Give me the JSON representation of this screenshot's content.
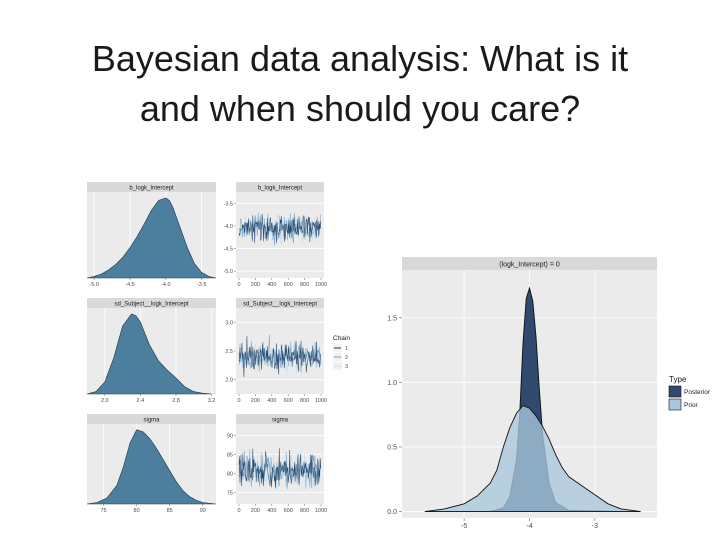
{
  "slide": {
    "title_line1": "Bayesian data analysis: What is it",
    "title_line2": "and when should you care?"
  },
  "colors": {
    "panel_bg": "#ebebeb",
    "strip_bg": "#d9d9d9",
    "density_fill": "#4c7f9e",
    "posterior": "#2f4a6e",
    "prior": "#a9c6dc"
  },
  "chart_data": [
    {
      "type": "area",
      "title": "b_logk_Intercept",
      "xticks": [
        -5.0,
        -4.5,
        -4.0,
        -3.5
      ],
      "xtick_labels": [
        "-5.0",
        "-4.5",
        "-4.0",
        "-3.5"
      ],
      "xlim": [
        -5.1,
        -3.3
      ],
      "x": [
        -5.1,
        -5.0,
        -4.9,
        -4.8,
        -4.7,
        -4.6,
        -4.5,
        -4.4,
        -4.3,
        -4.2,
        -4.1,
        -4.0,
        -3.95,
        -3.9,
        -3.8,
        -3.7,
        -3.6,
        -3.5,
        -3.4,
        -3.3
      ],
      "y": [
        0.0,
        0.02,
        0.05,
        0.1,
        0.17,
        0.26,
        0.38,
        0.52,
        0.68,
        0.85,
        0.97,
        1.0,
        0.97,
        0.88,
        0.63,
        0.38,
        0.18,
        0.07,
        0.02,
        0.0
      ]
    },
    {
      "type": "line",
      "title": "b_logk_Intercept",
      "xticks": [
        0,
        200,
        400,
        600,
        800,
        1000
      ],
      "xtick_labels": [
        "0",
        "200",
        "400",
        "600",
        "800",
        "1000"
      ],
      "yticks": [
        -3.5,
        -4.0,
        -4.5,
        -5.0
      ],
      "ytick_labels": [
        "-3.5",
        "-4.0",
        "-4.5",
        "-5.0"
      ],
      "ylim": [
        -5.15,
        -3.25
      ],
      "center": -4.05,
      "spread": 0.55
    },
    {
      "type": "area",
      "title": "sd_Subject__logk_Intercept",
      "xticks": [
        2.0,
        2.4,
        2.8,
        3.2
      ],
      "xtick_labels": [
        "2.0",
        "2.4",
        "2.8",
        "3.2"
      ],
      "xlim": [
        1.8,
        3.25
      ],
      "x": [
        1.8,
        1.9,
        2.0,
        2.1,
        2.2,
        2.3,
        2.35,
        2.4,
        2.5,
        2.6,
        2.7,
        2.8,
        2.9,
        3.0,
        3.1,
        3.2
      ],
      "y": [
        0.0,
        0.03,
        0.15,
        0.45,
        0.85,
        1.0,
        0.98,
        0.9,
        0.62,
        0.42,
        0.3,
        0.2,
        0.09,
        0.03,
        0.01,
        0.0
      ]
    },
    {
      "type": "line",
      "title": "sd_Subject__logk_Intercept",
      "xticks": [
        0,
        200,
        400,
        600,
        800,
        1000
      ],
      "xtick_labels": [
        "0",
        "200",
        "400",
        "600",
        "800",
        "1000"
      ],
      "yticks": [
        3.0,
        2.5,
        2.0
      ],
      "ytick_labels": [
        "3.0",
        "2.5",
        "2.0"
      ],
      "ylim": [
        1.75,
        3.25
      ],
      "center": 2.4,
      "spread": 0.5
    },
    {
      "type": "area",
      "title": "sigma",
      "xticks": [
        75,
        80,
        85,
        90
      ],
      "xtick_labels": [
        "75",
        "80",
        "85",
        "90"
      ],
      "xlim": [
        72.5,
        92
      ],
      "x": [
        72.5,
        74,
        75.5,
        77,
        78,
        79,
        80,
        81,
        82,
        83,
        84,
        85,
        86,
        87,
        88,
        89,
        90,
        91,
        92
      ],
      "y": [
        0.0,
        0.02,
        0.08,
        0.25,
        0.5,
        0.82,
        1.0,
        0.97,
        0.88,
        0.75,
        0.6,
        0.45,
        0.3,
        0.18,
        0.1,
        0.05,
        0.02,
        0.01,
        0.0
      ]
    },
    {
      "type": "line",
      "title": "sigma",
      "xticks": [
        0,
        200,
        400,
        600,
        800,
        1000
      ],
      "xtick_labels": [
        "0",
        "200",
        "400",
        "600",
        "800",
        "1000"
      ],
      "yticks": [
        90,
        85,
        80,
        75
      ],
      "ytick_labels": [
        "90",
        "85",
        "80",
        "75"
      ],
      "ylim": [
        72,
        93
      ],
      "center": 81,
      "spread": 9
    },
    {
      "type": "area",
      "title": "(logk_Intercept) = 0",
      "xticks": [
        -5,
        -4,
        -3
      ],
      "xtick_labels": [
        "-5",
        "-4",
        "-3"
      ],
      "yticks": [
        0.0,
        0.5,
        1.0,
        1.5
      ],
      "ytick_labels": [
        "0.0",
        "0.5",
        "1.0",
        "1.5"
      ],
      "xlim": [
        -5.95,
        -2.05
      ],
      "ylim": [
        -0.05,
        1.87
      ],
      "legend": {
        "title": "Type",
        "position": "right"
      },
      "series": [
        {
          "name": "Posterior",
          "x": [
            -5.6,
            -4.6,
            -4.4,
            -4.3,
            -4.2,
            -4.15,
            -4.1,
            -4.05,
            -4.0,
            -3.95,
            -3.9,
            -3.85,
            -3.8,
            -3.7,
            -3.6,
            -3.4,
            -2.5
          ],
          "y": [
            0.0,
            0.0,
            0.03,
            0.12,
            0.4,
            0.75,
            1.3,
            1.65,
            1.73,
            1.63,
            1.35,
            0.95,
            0.6,
            0.22,
            0.07,
            0.01,
            0.0
          ]
        },
        {
          "name": "Prior",
          "x": [
            -5.6,
            -5.3,
            -5.0,
            -4.8,
            -4.6,
            -4.5,
            -4.4,
            -4.3,
            -4.2,
            -4.1,
            -4.0,
            -3.9,
            -3.8,
            -3.7,
            -3.6,
            -3.5,
            -3.4,
            -3.2,
            -3.0,
            -2.8,
            -2.6,
            -2.3
          ],
          "y": [
            0.0,
            0.02,
            0.06,
            0.12,
            0.22,
            0.32,
            0.5,
            0.65,
            0.76,
            0.82,
            0.8,
            0.74,
            0.66,
            0.56,
            0.44,
            0.34,
            0.27,
            0.2,
            0.13,
            0.06,
            0.02,
            0.0
          ]
        }
      ]
    }
  ],
  "chain_legend": {
    "title": "Chain",
    "items": [
      "1",
      "2",
      "3"
    ],
    "colors": [
      "#173a5e",
      "#6f9fc2",
      "#c6e0f0"
    ]
  },
  "prior_legend_colors": [
    "#2f4a6e",
    "#a9c6dc"
  ]
}
